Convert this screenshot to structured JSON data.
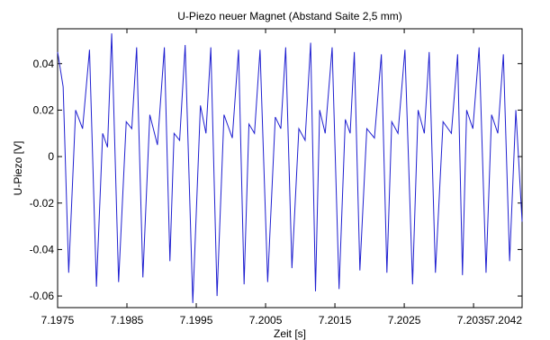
{
  "chart_data": {
    "type": "line",
    "title": "U-Piezo neuer Magnet (Abstand Saite 2,5 mm)",
    "xlabel": "Zeit [s]",
    "ylabel": "U-Piezo [V]",
    "xlim": [
      7.1975,
      7.2042
    ],
    "ylim": [
      -0.065,
      0.055
    ],
    "xticks": [
      7.1975,
      7.1985,
      7.1995,
      7.2005,
      7.2015,
      7.2025,
      7.2035,
      7.2042
    ],
    "xtick_labels": [
      "7.1975",
      "7.1985",
      "7.1995",
      "7.2005",
      "7.2015",
      "7.2025",
      "7.2035",
      "7.2042"
    ],
    "yticks": [
      -0.06,
      -0.04,
      -0.02,
      0,
      0.02,
      0.04
    ],
    "ytick_labels": [
      "-0.06",
      "-0.04",
      "-0.02",
      "0",
      "0.02",
      "0.04"
    ],
    "grid": false,
    "line_color": "#1f1fd0",
    "series": [
      {
        "x": [
          7.1975,
          7.19758,
          7.19766,
          7.19776,
          7.19786,
          7.19796,
          7.19806,
          7.19815,
          7.19822,
          7.19828,
          7.19838,
          7.19849,
          7.19857,
          7.19864,
          7.19873,
          7.19883,
          7.19894,
          7.19904,
          7.19912,
          7.19918,
          7.19926,
          7.19934,
          7.19945,
          7.19956,
          7.19964,
          7.19971,
          7.1998,
          7.1999,
          7.20002,
          7.20011,
          7.20019,
          7.20026,
          7.20034,
          7.20042,
          7.20053,
          7.20064,
          7.20072,
          7.20079,
          7.20088,
          7.20098,
          7.20107,
          7.20115,
          7.20122,
          7.20128,
          7.20136,
          7.20146,
          7.20156,
          7.20165,
          7.20172,
          7.20178,
          7.20186,
          7.20196,
          7.20207,
          7.20217,
          7.20225,
          7.20232,
          7.20241,
          7.20251,
          7.20262,
          7.2027,
          7.20279,
          7.20286,
          7.20295,
          7.20306,
          7.20318,
          7.20327,
          7.20334,
          7.2034,
          7.20349,
          7.20358,
          7.20368,
          7.20376,
          7.20385,
          7.20393,
          7.20402,
          7.20411,
          7.2042
        ],
        "y": [
          0.045,
          0.03,
          -0.05,
          0.02,
          0.012,
          0.046,
          -0.056,
          0.01,
          0.004,
          0.053,
          -0.054,
          0.015,
          0.012,
          0.047,
          -0.052,
          0.018,
          0.005,
          0.047,
          -0.045,
          0.01,
          0.007,
          0.048,
          -0.063,
          0.022,
          0.01,
          0.047,
          -0.06,
          0.018,
          0.008,
          0.046,
          -0.055,
          0.014,
          0.01,
          0.046,
          -0.054,
          0.017,
          0.012,
          0.047,
          -0.048,
          0.012,
          0.007,
          0.049,
          -0.058,
          0.02,
          0.01,
          0.047,
          -0.057,
          0.016,
          0.01,
          0.045,
          -0.049,
          0.012,
          0.008,
          0.044,
          -0.05,
          0.015,
          0.01,
          0.046,
          -0.055,
          0.02,
          0.01,
          0.045,
          -0.05,
          0.015,
          0.01,
          0.044,
          -0.051,
          0.02,
          0.012,
          0.047,
          -0.05,
          0.018,
          0.01,
          0.044,
          -0.045,
          0.02,
          -0.028
        ]
      }
    ]
  }
}
